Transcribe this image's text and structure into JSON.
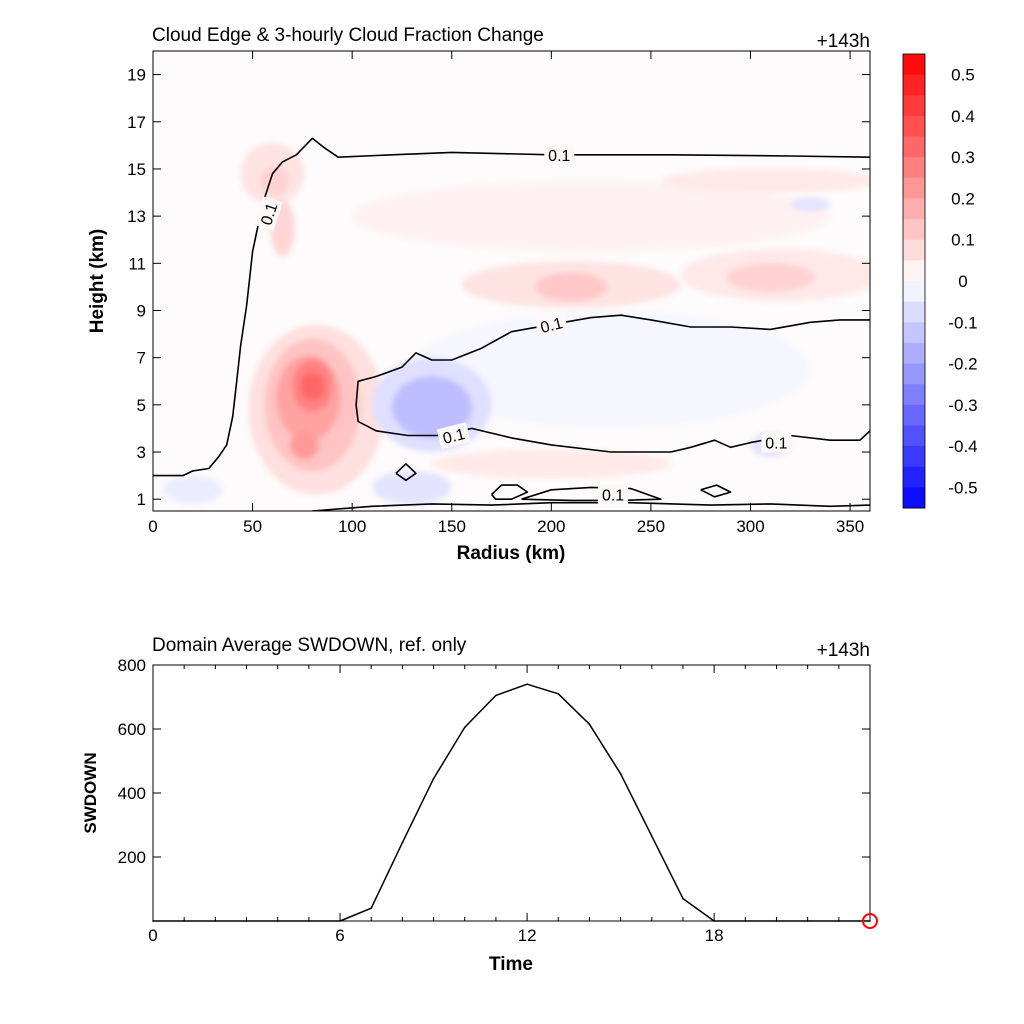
{
  "chart_data": [
    {
      "type": "contour",
      "title": "Cloud Edge & 3-hourly Cloud Fraction Change",
      "time_label": "+143h",
      "xlabel": "Radius (km)",
      "ylabel": "Height (km)",
      "xlim": [
        0,
        360
      ],
      "ylim": [
        0.5,
        20
      ],
      "xticks": [
        0,
        50,
        100,
        150,
        200,
        250,
        300,
        350
      ],
      "yticks": [
        1,
        3,
        5,
        7,
        9,
        11,
        13,
        15,
        17,
        19
      ],
      "colorbar": {
        "range": [
          -0.55,
          0.55
        ],
        "step": 0.05,
        "labels": [
          "0.5",
          "0.4",
          "0.3",
          "0.2",
          "0.1",
          "0",
          "-0.1",
          "-0.2",
          "-0.3",
          "-0.4",
          "-0.5"
        ],
        "label_values": [
          0.5,
          0.4,
          0.3,
          0.2,
          0.1,
          0,
          -0.1,
          -0.2,
          -0.3,
          -0.4,
          -0.5
        ],
        "neg_color": "#0000ff",
        "pos_color": "#ff0000",
        "mid_color": "#ffffff"
      },
      "fill_features": [
        {
          "x": 80,
          "y": 5.8,
          "rx": 6,
          "ry": 0.6,
          "value": 0.33
        },
        {
          "x": 80,
          "y": 5.8,
          "rx": 10,
          "ry": 1.1,
          "value": 0.27
        },
        {
          "x": 78,
          "y": 5.3,
          "rx": 16,
          "ry": 1.8,
          "value": 0.2
        },
        {
          "x": 80,
          "y": 5.0,
          "rx": 24,
          "ry": 2.8,
          "value": 0.13
        },
        {
          "x": 82,
          "y": 4.8,
          "rx": 34,
          "ry": 3.6,
          "value": 0.07
        },
        {
          "x": 76,
          "y": 3.3,
          "rx": 7,
          "ry": 0.6,
          "value": 0.22
        },
        {
          "x": 60,
          "y": 14.8,
          "rx": 16,
          "ry": 1.3,
          "value": 0.06
        },
        {
          "x": 61,
          "y": 14.5,
          "rx": 7,
          "ry": 0.6,
          "value": 0.1
        },
        {
          "x": 65,
          "y": 12.5,
          "rx": 6,
          "ry": 1.2,
          "value": 0.09
        },
        {
          "x": 210,
          "y": 10.0,
          "rx": 18,
          "ry": 0.6,
          "value": 0.12
        },
        {
          "x": 210,
          "y": 10.1,
          "rx": 55,
          "ry": 1.0,
          "value": 0.06
        },
        {
          "x": 310,
          "y": 10.4,
          "rx": 22,
          "ry": 0.6,
          "value": 0.1
        },
        {
          "x": 315,
          "y": 10.5,
          "rx": 50,
          "ry": 1.1,
          "value": 0.05
        },
        {
          "x": 310,
          "y": 14.5,
          "rx": 55,
          "ry": 0.5,
          "value": 0.05
        },
        {
          "x": 220,
          "y": 13.0,
          "rx": 120,
          "ry": 1.5,
          "value": 0.03
        },
        {
          "x": 140,
          "y": 4.9,
          "rx": 20,
          "ry": 1.3,
          "value": -0.14
        },
        {
          "x": 140,
          "y": 5.0,
          "rx": 30,
          "ry": 2.0,
          "value": -0.07
        },
        {
          "x": 130,
          "y": 1.5,
          "rx": 20,
          "ry": 0.7,
          "value": -0.06
        },
        {
          "x": 310,
          "y": 3.3,
          "rx": 10,
          "ry": 0.5,
          "value": -0.06
        },
        {
          "x": 330,
          "y": 13.5,
          "rx": 10,
          "ry": 0.3,
          "value": -0.06
        },
        {
          "x": 230,
          "y": 6.5,
          "rx": 100,
          "ry": 2.5,
          "value": -0.02
        },
        {
          "x": 200,
          "y": 2.5,
          "rx": 60,
          "ry": 0.6,
          "value": 0.05
        },
        {
          "x": 20,
          "y": 1.4,
          "rx": 15,
          "ry": 0.6,
          "value": -0.04
        }
      ],
      "contour_level": 0.1,
      "contour_labels": [
        "0.1",
        "0.1",
        "0.1",
        "0.1",
        "0.1",
        "0.1"
      ],
      "contours": [
        {
          "points": [
            [
              0,
              2.0
            ],
            [
              15,
              2.0
            ],
            [
              20,
              2.2
            ],
            [
              28,
              2.3
            ],
            [
              33,
              2.8
            ],
            [
              37,
              3.3
            ],
            [
              40,
              4.5
            ],
            [
              42,
              6.0
            ],
            [
              44,
              7.5
            ],
            [
              47,
              9.2
            ],
            [
              50,
              11.5
            ],
            [
              55,
              13.5
            ],
            [
              60,
              14.8
            ],
            [
              65,
              15.3
            ],
            [
              72,
              15.6
            ],
            [
              80,
              16.3
            ],
            [
              86,
              15.9
            ],
            [
              93,
              15.5
            ],
            [
              120,
              15.6
            ],
            [
              150,
              15.7
            ],
            [
              200,
              15.6
            ],
            [
              260,
              15.6
            ],
            [
              320,
              15.55
            ],
            [
              360,
              15.5
            ]
          ]
        },
        {
          "points": [
            [
              360,
              8.6
            ],
            [
              345,
              8.6
            ],
            [
              330,
              8.5
            ],
            [
              310,
              8.2
            ],
            [
              290,
              8.3
            ],
            [
              270,
              8.3
            ],
            [
              250,
              8.6
            ],
            [
              235,
              8.8
            ],
            [
              220,
              8.7
            ],
            [
              200,
              8.4
            ],
            [
              180,
              8.1
            ],
            [
              165,
              7.4
            ],
            [
              150,
              6.9
            ],
            [
              140,
              6.9
            ],
            [
              132,
              7.2
            ],
            [
              125,
              6.6
            ],
            [
              112,
              6.2
            ],
            [
              103,
              6.0
            ],
            [
              102,
              5.0
            ],
            [
              103,
              4.3
            ],
            [
              112,
              3.9
            ],
            [
              128,
              3.7
            ],
            [
              145,
              3.7
            ],
            [
              160,
              4.0
            ],
            [
              180,
              3.6
            ],
            [
              200,
              3.3
            ],
            [
              230,
              3.0
            ],
            [
              260,
              3.0
            ],
            [
              270,
              3.2
            ],
            [
              282,
              3.5
            ],
            [
              290,
              3.2
            ],
            [
              300,
              3.4
            ],
            [
              320,
              3.7
            ],
            [
              340,
              3.5
            ],
            [
              355,
              3.5
            ],
            [
              360,
              3.9
            ]
          ]
        },
        {
          "points": [
            [
              80,
              0.5
            ],
            [
              110,
              0.7
            ],
            [
              140,
              0.8
            ],
            [
              170,
              0.75
            ],
            [
              200,
              0.85
            ],
            [
              240,
              0.85
            ],
            [
              280,
              0.75
            ],
            [
              310,
              0.8
            ],
            [
              340,
              0.7
            ],
            [
              360,
              0.75
            ]
          ]
        },
        {
          "points": [
            [
              185,
              1.0
            ],
            [
              200,
              1.4
            ],
            [
              220,
              1.5
            ],
            [
              240,
              1.45
            ],
            [
              255,
              1.0
            ],
            [
              235,
              0.95
            ],
            [
              210,
              0.95
            ],
            [
              185,
              1.0
            ]
          ]
        },
        {
          "points": [
            [
              170,
              1.2
            ],
            [
              175,
              1.6
            ],
            [
              183,
              1.6
            ],
            [
              188,
              1.3
            ],
            [
              180,
              1.0
            ],
            [
              172,
              1.0
            ],
            [
              170,
              1.2
            ]
          ]
        },
        {
          "points": [
            [
              122,
              2.1
            ],
            [
              127,
              2.5
            ],
            [
              132,
              2.1
            ],
            [
              127,
              1.8
            ],
            [
              122,
              2.1
            ]
          ]
        },
        {
          "points": [
            [
              275,
              1.4
            ],
            [
              283,
              1.6
            ],
            [
              290,
              1.3
            ],
            [
              282,
              1.1
            ],
            [
              275,
              1.4
            ]
          ]
        }
      ],
      "contour_label_positions": [
        [
          58,
          13.1
        ],
        [
          204,
          15.6
        ],
        [
          200,
          8.4
        ],
        [
          151,
          3.7
        ],
        [
          313,
          3.4
        ],
        [
          231,
          1.2
        ]
      ]
    },
    {
      "type": "line",
      "title": "Domain Average SWDOWN, ref. only",
      "time_label": "+143h",
      "xlabel": "Time",
      "ylabel": "SWDOWN",
      "xlim": [
        0,
        23
      ],
      "ylim": [
        0,
        800
      ],
      "xticks": [
        0,
        6,
        12,
        18
      ],
      "yticks": [
        200,
        400,
        600,
        800
      ],
      "series": [
        {
          "x": [
            0,
            1,
            2,
            3,
            4,
            5,
            6,
            7,
            8,
            9,
            10,
            11,
            12,
            13,
            14,
            15,
            16,
            17,
            18,
            19,
            20,
            21,
            22,
            23
          ],
          "y": [
            0,
            0,
            0,
            0,
            0,
            0,
            0,
            40,
            245,
            445,
            605,
            705,
            740,
            710,
            615,
            460,
            265,
            70,
            0,
            0,
            0,
            0,
            0,
            0
          ]
        }
      ],
      "marker": {
        "x": 23,
        "y": 0,
        "color": "#ff0000"
      }
    }
  ]
}
